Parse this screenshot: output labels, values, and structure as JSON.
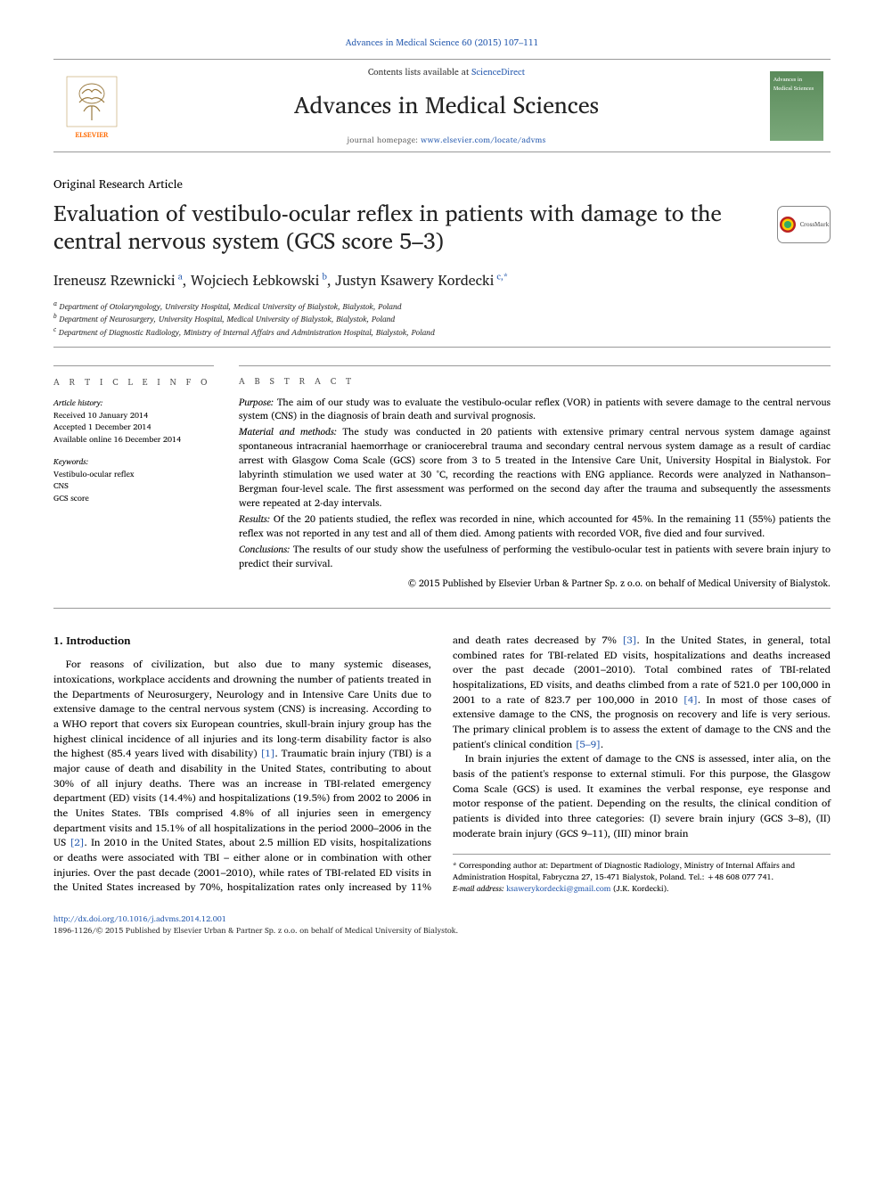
{
  "colors": {
    "link": "#2a5db0",
    "elsevier_orange": "#ff6a00",
    "rule": "#999999",
    "text": "#000000",
    "heading": "#222222",
    "cover_bg_top": "#5a8a5a",
    "cover_bg_bottom": "#7aa87a"
  },
  "typography": {
    "body_font": "Charis SIL, Georgia, serif",
    "title_fontsize": 25,
    "journal_name_fontsize": 26,
    "body_fontsize": 11.5,
    "abstract_fontsize": 11,
    "affil_fontsize": 9
  },
  "header": {
    "journal_ref": "Advances in Medical Science 60 (2015) 107–111",
    "contents_prefix": "Contents lists available at ",
    "contents_link": "ScienceDirect",
    "journal_name": "Advances in Medical Sciences",
    "homepage_prefix": "journal homepage: ",
    "homepage_url": "www.elsevier.com/locate/advms",
    "cover_text": "Advances in Medical Sciences",
    "elsevier_label": "ELSEVIER"
  },
  "article": {
    "type": "Original Research Article",
    "title": "Evaluation of vestibulo-ocular reflex in patients with damage to the central nervous system (GCS score 5–3)",
    "crossmark_label": "CrossMark",
    "authors_html": "Ireneusz Rzewnicki<sup> a</sup>, Wojciech Łebkowski<sup> b</sup>, Justyn Ksawery Kordecki<sup> c,*</sup>",
    "affiliations": [
      "Department of Otolaryngology, University Hospital, Medical University of Bialystok, Bialystok, Poland",
      "Department of Neurosurgery, University Hospital, Medical University of Bialystok, Bialystok, Poland",
      "Department of Diagnostic Radiology, Ministry of Internal Affairs and Administration Hospital, Bialystok, Poland"
    ]
  },
  "info": {
    "heading": "A R T I C L E   I N F O",
    "history_label": "Article history:",
    "history": [
      "Received 10 January 2014",
      "Accepted 1 December 2014",
      "Available online 16 December 2014"
    ],
    "keywords_label": "Keywords:",
    "keywords": [
      "Vestibulo-ocular reflex",
      "CNS",
      "GCS score"
    ]
  },
  "abstract": {
    "heading": "A B S T R A C T",
    "purpose_label": "Purpose:",
    "purpose": "The aim of our study was to evaluate the vestibulo-ocular reflex (VOR) in patients with severe damage to the central nervous system (CNS) in the diagnosis of brain death and survival prognosis.",
    "material_label": "Material and methods:",
    "material": "The study was conducted in 20 patients with extensive primary central nervous system damage against spontaneous intracranial haemorrhage or craniocerebral trauma and secondary central nervous system damage as a result of cardiac arrest with Glasgow Coma Scale (GCS) score from 3 to 5 treated in the Intensive Care Unit, University Hospital in Bialystok. For labyrinth stimulation we used water at 30 °C, recording the reactions with ENG appliance. Records were analyzed in Nathanson–Bergman four-level scale. The first assessment was performed on the second day after the trauma and subsequently the assessments were repeated at 2-day intervals.",
    "results_label": "Results:",
    "results": "Of the 20 patients studied, the reflex was recorded in nine, which accounted for 45%. In the remaining 11 (55%) patients the reflex was not reported in any test and all of them died. Among patients with recorded VOR, five died and four survived.",
    "conclusions_label": "Conclusions:",
    "conclusions": "The results of our study show the usefulness of performing the vestibulo-ocular test in patients with severe brain injury to predict their survival.",
    "copyright": "© 2015 Published by Elsevier Urban & Partner Sp. z o.o. on behalf of Medical University of Bialystok."
  },
  "body": {
    "section_heading": "1. Introduction",
    "para1": "For reasons of civilization, but also due to many systemic diseases, intoxications, workplace accidents and drowning the number of patients treated in the Departments of Neurosurgery, Neurology and in Intensive Care Units due to extensive damage to the central nervous system (CNS) is increasing. According to a WHO report that covers six European countries, skull-brain injury group has the highest clinical incidence of all injuries and its long-term disability factor is also the highest (85.4 years lived with disability) ",
    "ref1": "[1]",
    "para1b": ". Traumatic brain injury (TBI) is a major cause of death and disability in the United States, contributing to about 30% of all injury deaths. There was an increase in TBI-related emergency department (ED) visits (14.4%) and hospitalizations (19.5%) from 2002 to 2006 in the Unites States. TBIs comprised 4.8% of all injuries seen in emergency department visits and 15.1% ",
    "para2a": "of all hospitalizations in the period 2000–2006 in the US ",
    "ref2": "[2]",
    "para2b": ". In 2010 in the United States, about 2.5 million ED visits, hospitalizations or deaths were associated with TBI – either alone or in combination with other injuries. Over the past decade (2001–2010), while rates of TBI-related ED visits in the United States increased by 70%, hospitalization rates only increased by 11% and death rates decreased by 7% ",
    "ref3": "[3]",
    "para2c": ". In the United States, in general, total combined rates for TBI-related ED visits, hospitalizations and deaths increased over the past decade (2001–2010). Total combined rates of TBI-related hospitalizations, ED visits, and deaths climbed from a rate of 521.0 per 100,000 in 2001 to a rate of 823.7 per 100,000 in 2010 ",
    "ref4": "[4]",
    "para2d": ". In most of those cases of extensive damage to the CNS, the prognosis on recovery and life is very serious. The primary clinical problem is to assess the extent of damage to the CNS and the patient's clinical condition ",
    "ref5": "[5–9]",
    "para2e": ".",
    "para3": "In brain injuries the extent of damage to the CNS is assessed, inter alia, on the basis of the patient's response to external stimuli. For this purpose, the Glasgow Coma Scale (GCS) is used. It examines the verbal response, eye response and motor response of the patient. Depending on the results, the clinical condition of patients is divided into three categories: (I) severe brain injury (GCS 3–8), (II) moderate brain injury (GCS 9–11), (III) minor brain"
  },
  "footnote": {
    "corresponding": "* Corresponding author at: Department of Diagnostic Radiology, Ministry of Internal Affairs and Administration Hospital, Fabryczna 27, 15-471 Bialystok, Poland. Tel.: +48 608 077 741.",
    "email_label": "E-mail address:",
    "email": "ksawerykordecki@gmail.com",
    "email_suffix": "(J.K. Kordecki)."
  },
  "footer": {
    "doi": "http://dx.doi.org/10.1016/j.advms.2014.12.001",
    "issn_line": "1896-1126/© 2015 Published by Elsevier Urban & Partner Sp. z o.o. on behalf of Medical University of Bialystok."
  }
}
